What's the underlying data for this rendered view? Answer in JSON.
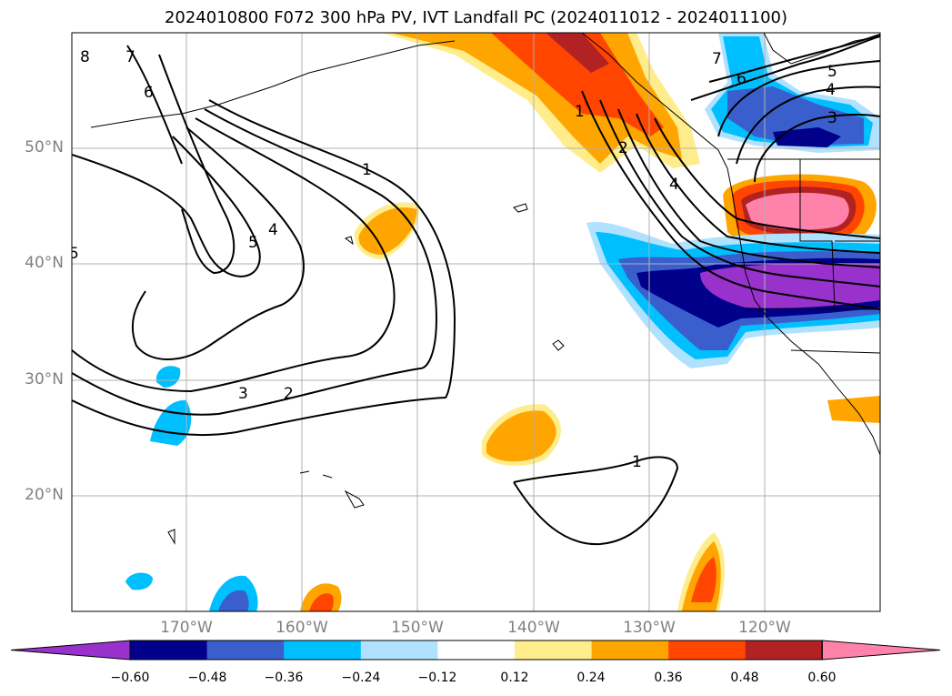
{
  "title": "2024010800 F072 300 hPa PV, IVT Landfall PC (2024011012 - 2024011100)",
  "map": {
    "lon_range": [
      -180,
      -110
    ],
    "lat_range": [
      10,
      60
    ],
    "lat_ticks": [
      {
        "value": 20,
        "label": "20°N"
      },
      {
        "value": 30,
        "label": "30°N"
      },
      {
        "value": 40,
        "label": "40°N"
      },
      {
        "value": 50,
        "label": "50°N"
      }
    ],
    "lon_ticks": [
      {
        "value": -170,
        "label": "170°W"
      },
      {
        "value": -160,
        "label": "160°W"
      },
      {
        "value": -150,
        "label": "150°W"
      },
      {
        "value": -140,
        "label": "140°W"
      },
      {
        "value": -130,
        "label": "130°W"
      },
      {
        "value": -120,
        "label": "120°W"
      }
    ],
    "grid": true,
    "contour_labels": [
      "1",
      "2",
      "3",
      "4",
      "5",
      "6",
      "7",
      "8"
    ]
  },
  "colorbar": {
    "colors": [
      "#9932cc",
      "#00008b",
      "#3a5fcd",
      "#00bfff",
      "#b0e2ff",
      "#ffffff",
      "#ffec8b",
      "#ffa500",
      "#ff4500",
      "#b22222",
      "#ff82ab"
    ],
    "ticks": [
      "−0.60",
      "−0.48",
      "−0.36",
      "−0.24",
      "−0.12",
      "0.12",
      "0.24",
      "0.36",
      "0.48",
      "0.60"
    ],
    "extend": "both"
  }
}
